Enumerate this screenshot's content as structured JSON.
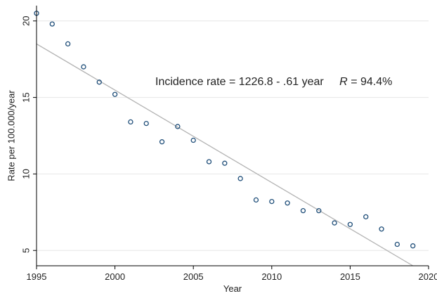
{
  "chart_data": {
    "type": "scatter",
    "xlabel": "Year",
    "ylabel": "Rate per 100.000/year",
    "xlim": [
      1995,
      2020
    ],
    "ylim": [
      4,
      21
    ],
    "x_ticks": [
      1995,
      2000,
      2005,
      2010,
      2015,
      2020
    ],
    "y_ticks": [
      5,
      10,
      15,
      20
    ],
    "grid": "horizontal at y ticks",
    "legend": "none",
    "points": {
      "x": [
        1995,
        1996,
        1997,
        1998,
        1999,
        2000,
        2001,
        2002,
        2003,
        2004,
        2005,
        2006,
        2007,
        2008,
        2009,
        2010,
        2011,
        2012,
        2013,
        2014,
        2015,
        2016,
        2017,
        2018,
        2019
      ],
      "y": [
        20.5,
        19.8,
        18.5,
        17.0,
        16.0,
        15.2,
        13.4,
        13.3,
        12.1,
        13.1,
        12.2,
        10.8,
        10.7,
        9.7,
        8.3,
        8.2,
        8.1,
        7.6,
        7.6,
        6.8,
        6.7,
        7.2,
        6.4,
        5.4,
        5.3
      ]
    },
    "fit_line": {
      "x": [
        1995,
        2019
      ],
      "y": [
        18.5,
        4.0
      ]
    },
    "annotation": {
      "prefix": "Incidence rate = 1226.8 - .61 year",
      "r_label": "R",
      "r_value": " = 94.4%"
    },
    "colors": {
      "marker_stroke": "#1f4e79",
      "fit_line": "#b3b3b3",
      "grid": "#e6e6e6",
      "axis": "#000000"
    }
  }
}
